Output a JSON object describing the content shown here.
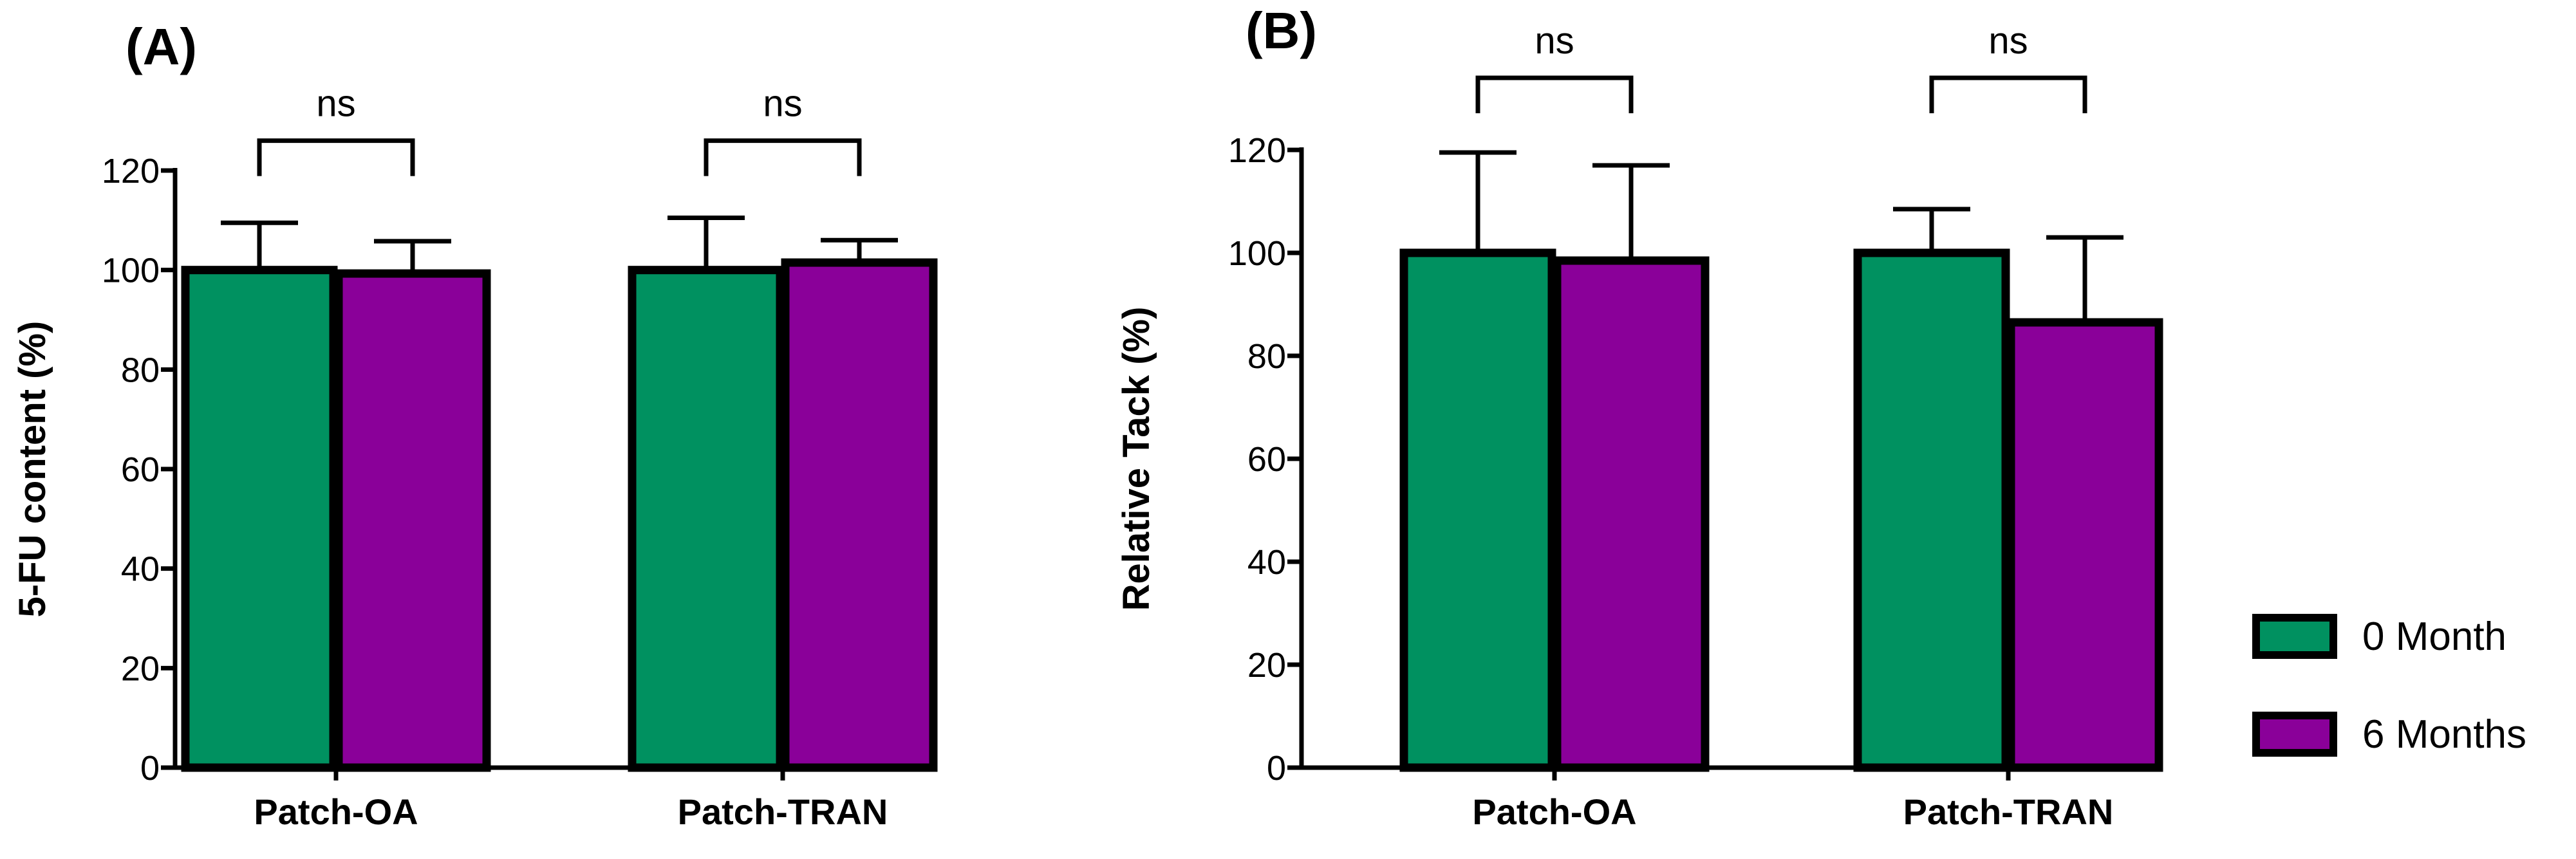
{
  "colors": {
    "series_0": "#009160",
    "series_1": "#8a0099",
    "stroke": "#000000",
    "background": "#ffffff"
  },
  "legend": {
    "placement": "right-bottom",
    "items": [
      {
        "label": "0 Month",
        "color": "#009160"
      },
      {
        "label": "6 Months",
        "color": "#8a0099"
      }
    ]
  },
  "chart_data": [
    {
      "type": "bar",
      "panel_label": "(A)",
      "title": "",
      "xlabel": "",
      "ylabel": "5-FU content (%)",
      "ylim": [
        0,
        120
      ],
      "yticks": [
        0,
        20,
        40,
        60,
        80,
        100,
        120
      ],
      "categories": [
        "Patch-OA",
        "Patch-TRAN"
      ],
      "series": [
        {
          "name": "0 Month",
          "values": [
            100,
            100
          ],
          "errors": [
            9.5,
            10.5
          ]
        },
        {
          "name": "6 Months",
          "values": [
            99.3,
            101.5
          ],
          "errors": [
            6.5,
            4.5
          ]
        }
      ],
      "significance": [
        {
          "category_index": 0,
          "label": "ns",
          "bracket_y": 126
        },
        {
          "category_index": 1,
          "label": "ns",
          "bracket_y": 126
        }
      ]
    },
    {
      "type": "bar",
      "panel_label": "(B)",
      "title": "",
      "xlabel": "",
      "ylabel": "Relative Tack (%)",
      "ylim": [
        0,
        120
      ],
      "yticks": [
        0,
        20,
        40,
        60,
        80,
        100,
        120
      ],
      "categories": [
        "Patch-OA",
        "Patch-TRAN"
      ],
      "series": [
        {
          "name": "0 Month",
          "values": [
            100,
            100
          ],
          "errors": [
            19.5,
            8.5
          ]
        },
        {
          "name": "6 Months",
          "values": [
            98.5,
            86.5
          ],
          "errors": [
            18.5,
            16.5
          ]
        }
      ],
      "significance": [
        {
          "category_index": 0,
          "label": "ns",
          "bracket_y": 134
        },
        {
          "category_index": 1,
          "label": "ns",
          "bracket_y": 134
        }
      ]
    }
  ]
}
